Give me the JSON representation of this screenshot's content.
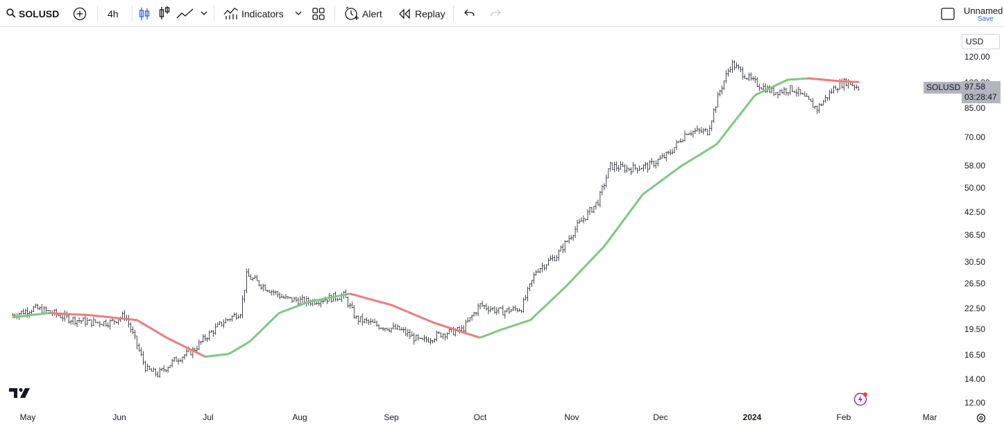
{
  "toolbar": {
    "symbol": "SOLUSD",
    "interval": "4h",
    "indicators_label": "Indicators",
    "alert_label": "Alert",
    "replay_label": "Replay",
    "layout_name": "Unnamed",
    "save_label": "Save",
    "icons": [
      "search-icon",
      "add-symbol-icon",
      "bar-style-icon",
      "candle-style-icon",
      "line-style-icon",
      "chevron-down-icon",
      "indicators-icon",
      "layouts-icon",
      "alert-icon",
      "replay-icon",
      "undo-icon",
      "redo-icon",
      "fullscreen-icon"
    ]
  },
  "price_scale": {
    "currency": "USD",
    "last_price": "97.58",
    "countdown": "03:28:47",
    "symbol_tag": "SOLUSD"
  },
  "colors": {
    "ma_up": "#81c784",
    "ma_down": "#ef7c7c",
    "bars": "#131722",
    "tag_bg": "#b2b5be"
  },
  "chart_data": {
    "type": "line",
    "scale": "log",
    "y_ticks": [
      "120.00",
      "100.00",
      "85.00",
      "70.00",
      "58.00",
      "50.00",
      "42.50",
      "36.50",
      "30.50",
      "26.50",
      "22.50",
      "19.50",
      "16.50",
      "14.00",
      "12.00"
    ],
    "x_ticks": [
      "May",
      "Jun",
      "Jul",
      "Aug",
      "Sep",
      "Oct",
      "Nov",
      "Dec",
      "2024",
      "Feb",
      "Mar"
    ],
    "ylim": [
      11.5,
      132
    ],
    "series": [
      {
        "type": "ohlc-bars",
        "points": [
          [
            "2023-04-26",
            21.5
          ],
          [
            "2023-05-03",
            22.5
          ],
          [
            "2023-05-08",
            22.0
          ],
          [
            "2023-05-15",
            21.0
          ],
          [
            "2023-05-22",
            20.5
          ],
          [
            "2023-05-29",
            20.5
          ],
          [
            "2023-06-03",
            21.5
          ],
          [
            "2023-06-06",
            18.5
          ],
          [
            "2023-06-10",
            15.0
          ],
          [
            "2023-06-14",
            14.5
          ],
          [
            "2023-06-20",
            16.0
          ],
          [
            "2023-06-26",
            17.0
          ],
          [
            "2023-06-30",
            18.5
          ],
          [
            "2023-07-06",
            20.5
          ],
          [
            "2023-07-12",
            22.0
          ],
          [
            "2023-07-14",
            28.0
          ],
          [
            "2023-07-20",
            26.0
          ],
          [
            "2023-07-27",
            24.0
          ],
          [
            "2023-08-04",
            23.5
          ],
          [
            "2023-08-10",
            24.0
          ],
          [
            "2023-08-16",
            24.5
          ],
          [
            "2023-08-20",
            21.0
          ],
          [
            "2023-08-28",
            20.0
          ],
          [
            "2023-09-04",
            19.5
          ],
          [
            "2023-09-11",
            18.0
          ],
          [
            "2023-09-18",
            19.0
          ],
          [
            "2023-09-25",
            19.5
          ],
          [
            "2023-10-01",
            23.0
          ],
          [
            "2023-10-08",
            22.0
          ],
          [
            "2023-10-15",
            22.5
          ],
          [
            "2023-10-20",
            29.0
          ],
          [
            "2023-10-27",
            32.0
          ],
          [
            "2023-11-03",
            39.0
          ],
          [
            "2023-11-10",
            46.0
          ],
          [
            "2023-11-14",
            58.0
          ],
          [
            "2023-11-20",
            57.0
          ],
          [
            "2023-11-27",
            58.0
          ],
          [
            "2023-12-04",
            63.0
          ],
          [
            "2023-12-10",
            73.0
          ],
          [
            "2023-12-17",
            73.0
          ],
          [
            "2023-12-21",
            95.0
          ],
          [
            "2023-12-25",
            115.0
          ],
          [
            "2024-01-01",
            102.0
          ],
          [
            "2024-01-08",
            95.0
          ],
          [
            "2024-01-15",
            97.0
          ],
          [
            "2024-01-23",
            85.0
          ],
          [
            "2024-01-29",
            98.0
          ],
          [
            "2024-02-02",
            102.0
          ],
          [
            "2024-02-06",
            97.58
          ]
        ]
      },
      {
        "type": "moving-average",
        "points": [
          [
            "2023-04-26",
            21.2
          ],
          [
            "2023-05-08",
            21.8
          ],
          [
            "2023-05-22",
            21.5
          ],
          [
            "2023-06-07",
            20.8
          ],
          [
            "2023-06-17",
            18.5
          ],
          [
            "2023-06-30",
            16.3
          ],
          [
            "2023-07-08",
            16.6
          ],
          [
            "2023-07-15",
            18.0
          ],
          [
            "2023-07-25",
            21.8
          ],
          [
            "2023-08-04",
            23.5
          ],
          [
            "2023-08-18",
            24.8
          ],
          [
            "2023-09-01",
            23.0
          ],
          [
            "2023-09-15",
            20.5
          ],
          [
            "2023-09-25",
            19.2
          ],
          [
            "2023-10-01",
            18.5
          ],
          [
            "2023-10-08",
            19.5
          ],
          [
            "2023-10-18",
            20.8
          ],
          [
            "2023-10-30",
            26.0
          ],
          [
            "2023-11-12",
            34.0
          ],
          [
            "2023-11-25",
            48.0
          ],
          [
            "2023-12-08",
            58.0
          ],
          [
            "2023-12-20",
            67.0
          ],
          [
            "2024-01-02",
            93.0
          ],
          [
            "2024-01-13",
            103.0
          ],
          [
            "2024-01-20",
            104.0
          ],
          [
            "2024-01-31",
            102.0
          ],
          [
            "2024-02-06",
            101.5
          ]
        ]
      }
    ]
  }
}
